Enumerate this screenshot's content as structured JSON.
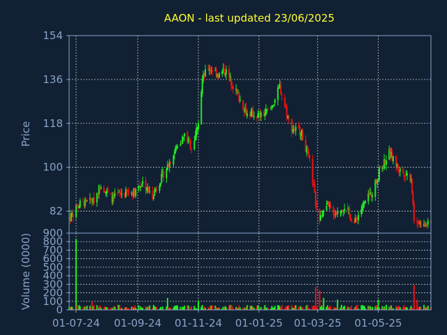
{
  "chart_data": {
    "type": "candlestick",
    "title": "AAON - last updated 23/06/2025",
    "price_panel": {
      "ylabel": "Price",
      "ylim": [
        73,
        154
      ],
      "yticks": [
        82,
        100,
        118,
        136,
        154
      ]
    },
    "volume_panel": {
      "ylabel": "Volume (0000)",
      "ylim": [
        0,
        900
      ],
      "yticks": [
        0,
        100,
        200,
        300,
        400,
        500,
        600,
        700,
        800,
        900
      ]
    },
    "x_tick_labels": [
      "01-07-24",
      "01-09-24",
      "01-11-24",
      "01-01-25",
      "01-03-25",
      "01-05-25"
    ],
    "x_tick_dates": [
      "2024-07-01",
      "2024-09-01",
      "2024-11-01",
      "2025-01-01",
      "2025-03-01",
      "2025-05-01"
    ],
    "date_range": [
      "2024-06-24",
      "2025-06-23"
    ],
    "price_anchors": [
      [
        "2024-06-24",
        79
      ],
      [
        "2024-07-05",
        85
      ],
      [
        "2024-07-18",
        86
      ],
      [
        "2024-07-26",
        93
      ],
      [
        "2024-08-06",
        87
      ],
      [
        "2024-08-14",
        89
      ],
      [
        "2024-08-28",
        90
      ],
      [
        "2024-09-06",
        94
      ],
      [
        "2024-09-15",
        88
      ],
      [
        "2024-09-28",
        98
      ],
      [
        "2024-10-10",
        108
      ],
      [
        "2024-10-18",
        113
      ],
      [
        "2024-10-26",
        108
      ],
      [
        "2024-11-01",
        119
      ],
      [
        "2024-11-05",
        136
      ],
      [
        "2024-11-11",
        141
      ],
      [
        "2024-11-22",
        138
      ],
      [
        "2024-11-28",
        140
      ],
      [
        "2024-12-09",
        131
      ],
      [
        "2024-12-20",
        122
      ],
      [
        "2025-01-03",
        121
      ],
      [
        "2025-01-13",
        124
      ],
      [
        "2025-01-22",
        133
      ],
      [
        "2025-02-02",
        116
      ],
      [
        "2025-02-12",
        115
      ],
      [
        "2025-02-22",
        101
      ],
      [
        "2025-02-27",
        85
      ],
      [
        "2025-03-03",
        78
      ],
      [
        "2025-03-10",
        84
      ],
      [
        "2025-03-19",
        81
      ],
      [
        "2025-03-28",
        84
      ],
      [
        "2025-04-07",
        77
      ],
      [
        "2025-04-15",
        84
      ],
      [
        "2025-04-25",
        90
      ],
      [
        "2025-05-02",
        98
      ],
      [
        "2025-05-12",
        106
      ],
      [
        "2025-05-22",
        99
      ],
      [
        "2025-06-03",
        96
      ],
      [
        "2025-06-06",
        79
      ],
      [
        "2025-06-15",
        76
      ],
      [
        "2025-06-23",
        77
      ]
    ],
    "volume_typical": 35,
    "volume_spikes": [
      [
        "2024-07-01",
        830
      ],
      [
        "2024-07-17",
        100
      ],
      [
        "2024-10-01",
        140
      ],
      [
        "2024-11-01",
        110
      ],
      [
        "2025-01-25",
        100
      ],
      [
        "2025-02-27",
        270
      ],
      [
        "2025-03-03",
        230
      ],
      [
        "2025-03-07",
        140
      ],
      [
        "2025-03-21",
        120
      ],
      [
        "2025-05-01",
        120
      ],
      [
        "2025-06-06",
        290
      ],
      [
        "2025-06-09",
        120
      ]
    ],
    "colors": {
      "background": "#112033",
      "axes": "#8aa4c8",
      "grid": "#e6e6e6",
      "title": "#ffff33",
      "label": "#8aa4c8",
      "up": "#22ee22",
      "down": "#ee1111"
    }
  }
}
